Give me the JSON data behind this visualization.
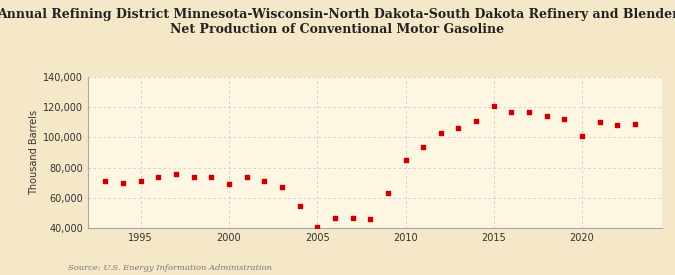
{
  "title": "Annual Refining District Minnesota-Wisconsin-North Dakota-South Dakota Refinery and Blender\nNet Production of Conventional Motor Gasoline",
  "ylabel": "Thousand Barrels",
  "source": "Source: U.S. Energy Information Administration",
  "background_color": "#f5e8c8",
  "plot_background_color": "#fdf6e3",
  "grid_color": "#cccccc",
  "marker_color": "#cc0000",
  "years": [
    1993,
    1994,
    1995,
    1996,
    1997,
    1998,
    1999,
    2000,
    2001,
    2002,
    2003,
    2004,
    2005,
    2006,
    2007,
    2008,
    2009,
    2010,
    2011,
    2012,
    2013,
    2014,
    2015,
    2016,
    2017,
    2018,
    2019,
    2020,
    2021,
    2022,
    2023
  ],
  "values": [
    71000,
    70000,
    71000,
    74000,
    76000,
    74000,
    74000,
    69000,
    74000,
    71000,
    67000,
    55000,
    41000,
    47000,
    47000,
    46000,
    63000,
    85000,
    94000,
    103000,
    106000,
    111000,
    121000,
    117000,
    117000,
    114000,
    112000,
    101000,
    110000,
    108000,
    109000
  ],
  "ylim": [
    40000,
    140000
  ],
  "yticks": [
    40000,
    60000,
    80000,
    100000,
    120000,
    140000
  ],
  "xlim": [
    1992,
    2024.5
  ],
  "xticks": [
    1995,
    2000,
    2005,
    2010,
    2015,
    2020
  ]
}
